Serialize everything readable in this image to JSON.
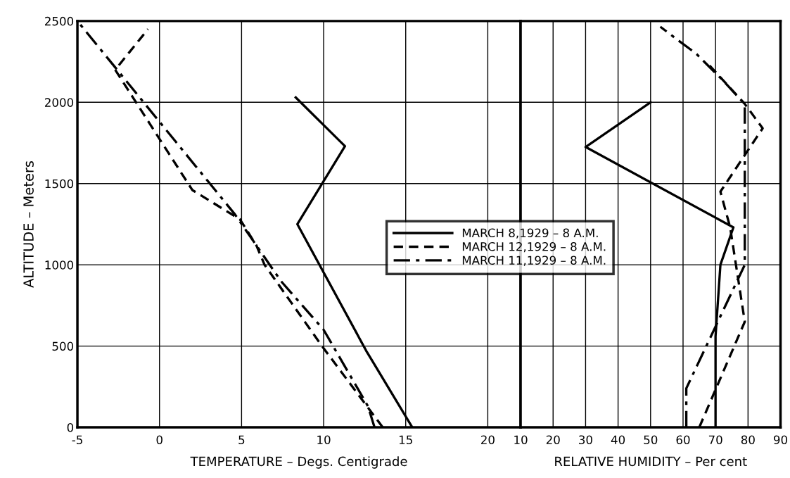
{
  "chart_data": [
    {
      "type": "line",
      "xlabel": "TEMPERATURE – Degs. Centigrade",
      "ylabel": "ALTITUDE – Meters",
      "xlim": [
        -5,
        22
      ],
      "xticks": [
        -5,
        0,
        5,
        10,
        15,
        20
      ],
      "ylim": [
        0,
        2500
      ],
      "yticks": [
        0,
        500,
        1000,
        1500,
        2000,
        2500
      ],
      "grid": true,
      "legend": "center",
      "series": [
        {
          "name": "MARCH 8,1929 – 8 A.M.",
          "color": "#000000",
          "line_style": "solid",
          "x": [
            15.4,
            12.6,
            8.4,
            11.3,
            8.3
          ],
          "values": [
            0,
            470,
            1250,
            1730,
            2030
          ]
        },
        {
          "name": "MARCH 12,1929 – 8 A.M.",
          "color": "#000000",
          "line_style": "dashed",
          "x": [
            13.6,
            9.9,
            6.4,
            5.9,
            4.9,
            2.0,
            -2.7,
            -0.7
          ],
          "values": [
            0,
            500,
            1000,
            1120,
            1280,
            1460,
            2200,
            2450
          ]
        },
        {
          "name": "MARCH 11,1929 – 8 A.M.",
          "color": "#000000",
          "line_style": "dashdot",
          "x": [
            13.1,
            12.7,
            10.0,
            7.4,
            4.6,
            -5.0
          ],
          "values": [
            0,
            130,
            600,
            900,
            1310,
            2500
          ]
        }
      ]
    },
    {
      "type": "line",
      "xlabel": "RELATIVE HUMIDITY – Per cent",
      "xlim": [
        10,
        90
      ],
      "xticks": [
        10,
        20,
        30,
        40,
        50,
        60,
        70,
        80,
        90
      ],
      "ylim": [
        0,
        2500
      ],
      "yticks": [
        0,
        500,
        1000,
        1500,
        2000,
        2500
      ],
      "grid": true,
      "tick_labels": "x",
      "series": [
        {
          "color": "#000000",
          "line_style": "solid",
          "x": [
            70,
            70,
            71.5,
            75.5,
            30,
            50
          ],
          "values": [
            0,
            560,
            1000,
            1230,
            1725,
            2000
          ]
        },
        {
          "color": "#000000",
          "line_style": "dashed",
          "x": [
            65,
            79,
            74.5,
            71.5,
            84.5,
            79,
            68
          ],
          "values": [
            0,
            650,
            1230,
            1450,
            1840,
            1990,
            2230
          ]
        },
        {
          "color": "#000000",
          "line_style": "dashdot",
          "x": [
            61,
            61,
            79,
            79,
            72,
            64,
            58.6,
            53
          ],
          "values": [
            0,
            240,
            1000,
            1990,
            2140,
            2300,
            2380,
            2465
          ]
        }
      ]
    }
  ]
}
